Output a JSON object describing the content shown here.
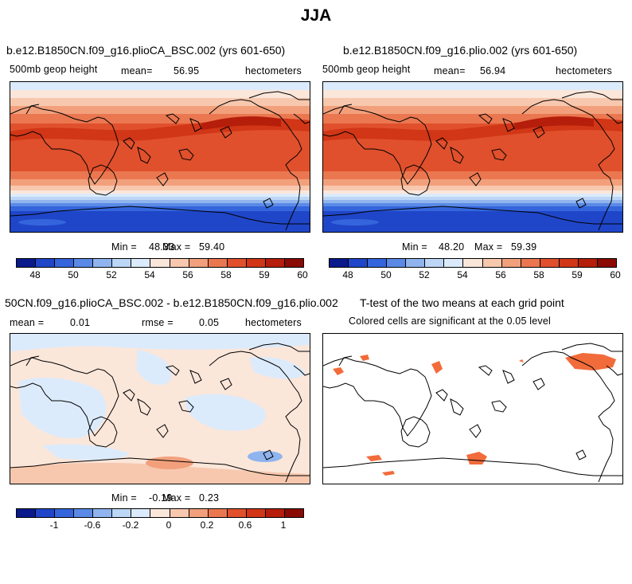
{
  "title": "JJA",
  "panels": [
    {
      "id": "p1",
      "title": "b.e12.B1850CN.f09_g16.plioCA_BSC.002 (yrs 601-650)",
      "variable": "500mb geop height",
      "mean_label": "mean=",
      "mean_value": "56.95",
      "units": "hectometers",
      "min_label": "Min =",
      "min_value": "48.33",
      "max_label": "Max =",
      "max_value": "59.40"
    },
    {
      "id": "p2",
      "title": "b.e12.B1850CN.f09_g16.plio.002 (yrs 601-650)",
      "variable": "500mb geop height",
      "mean_label": "mean=",
      "mean_value": "56.94",
      "units": "hectometers",
      "min_label": "Min =",
      "min_value": "48.20",
      "max_label": "Max =",
      "max_value": "59.39"
    },
    {
      "id": "p3",
      "title": "50CN.f09_g16.plioCA_BSC.002 - b.e12.B1850CN.f09_g16.plio.002",
      "mean_label": "mean =",
      "mean_value": "0.01",
      "rmse_label": "rmse =",
      "rmse_value": "0.05",
      "units": "hectometers",
      "min_label": "Min =",
      "min_value": "-0.19",
      "max_label": "Max =",
      "max_value": "0.23"
    },
    {
      "id": "p4",
      "title": "T-test of the two means at each grid point",
      "subtitle": "Colored cells are significant at the 0.05 level"
    }
  ],
  "colorbars": {
    "field": {
      "colors": [
        "#0a1a8c",
        "#1f46c8",
        "#3465dc",
        "#5a8ae6",
        "#8fb4ee",
        "#bcd6f6",
        "#dcebfb",
        "#fbe6da",
        "#f7c8ae",
        "#f2a07c",
        "#ea7750",
        "#e0502c",
        "#d13616",
        "#b51e0a",
        "#8a0a04"
      ],
      "labels": [
        "48",
        "50",
        "52",
        "54",
        "56",
        "58",
        "59",
        "60"
      ]
    },
    "diff": {
      "colors": [
        "#0a1a8c",
        "#1f46c8",
        "#3465dc",
        "#5a8ae6",
        "#8fb4ee",
        "#bcd6f6",
        "#dcebfb",
        "#fbe6da",
        "#f7c8ae",
        "#f2a07c",
        "#ea7750",
        "#e0502c",
        "#d13616",
        "#b51e0a",
        "#8a0a04"
      ],
      "labels": [
        "-1",
        "-0.6",
        "-0.2",
        "0",
        "0.2",
        "0.6",
        "1"
      ]
    }
  },
  "chart_data": [
    {
      "type": "heatmap",
      "title": "b.e12.B1850CN.f09_g16.plioCA_BSC.002 (yrs 601-650)",
      "variable": "500mb geop height",
      "units": "hectometers",
      "mean": 56.95,
      "min": 48.33,
      "max": 59.4,
      "colorbar_labels": [
        48,
        50,
        52,
        54,
        56,
        58,
        59,
        60
      ]
    },
    {
      "type": "heatmap",
      "title": "b.e12.B1850CN.f09_g16.plio.002 (yrs 601-650)",
      "variable": "500mb geop height",
      "units": "hectometers",
      "mean": 56.94,
      "min": 48.2,
      "max": 59.39,
      "colorbar_labels": [
        48,
        50,
        52,
        54,
        56,
        58,
        59,
        60
      ]
    },
    {
      "type": "heatmap",
      "title": "50CN.f09_g16.plioCA_BSC.002 - b.e12.B1850CN.f09_g16.plio.002",
      "units": "hectometers",
      "mean": 0.01,
      "rmse": 0.05,
      "min": -0.19,
      "max": 0.23,
      "colorbar_labels": [
        -1,
        -0.6,
        -0.2,
        0,
        0.2,
        0.6,
        1
      ]
    },
    {
      "type": "heatmap",
      "title": "T-test of the two means at each grid point",
      "subtitle": "Colored cells are significant at the 0.05 level",
      "significance_level": 0.05
    }
  ]
}
